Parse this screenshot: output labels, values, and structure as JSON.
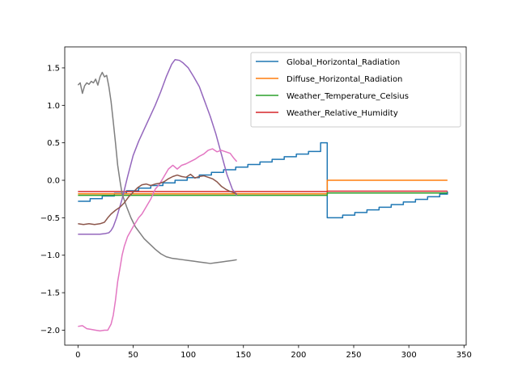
{
  "chart_data": {
    "type": "line",
    "xlim": [
      -12,
      352
    ],
    "ylim": [
      -2.2,
      1.78
    ],
    "x_ticks": [
      0,
      50,
      100,
      150,
      200,
      250,
      300,
      350
    ],
    "y_ticks": [
      -2.0,
      -1.5,
      -1.0,
      -0.5,
      0.0,
      0.5,
      1.0,
      1.5
    ],
    "y_tick_labels": [
      "−2.0",
      "−1.5",
      "−1.0",
      "−0.5",
      "0.0",
      "0.5",
      "1.0",
      "1.5"
    ],
    "grid": false,
    "legend_position": "top-right",
    "series": [
      {
        "name": "Global_Horizontal_Radiation",
        "color": "#1f77b4",
        "in_legend": true,
        "points": [
          [
            0,
            -0.28
          ],
          [
            11,
            -0.28
          ],
          [
            11,
            -0.245
          ],
          [
            22,
            -0.245
          ],
          [
            22,
            -0.21
          ],
          [
            33,
            -0.21
          ],
          [
            33,
            -0.175
          ],
          [
            44,
            -0.175
          ],
          [
            44,
            -0.14
          ],
          [
            55,
            -0.14
          ],
          [
            55,
            -0.105
          ],
          [
            66,
            -0.105
          ],
          [
            66,
            -0.07
          ],
          [
            77,
            -0.07
          ],
          [
            77,
            -0.035
          ],
          [
            88,
            -0.035
          ],
          [
            88,
            0.0
          ],
          [
            99,
            0.0
          ],
          [
            99,
            0.035
          ],
          [
            110,
            0.035
          ],
          [
            110,
            0.07
          ],
          [
            121,
            0.07
          ],
          [
            121,
            0.105
          ],
          [
            132,
            0.105
          ],
          [
            132,
            0.14
          ],
          [
            143,
            0.14
          ],
          [
            143,
            0.175
          ],
          [
            154,
            0.175
          ],
          [
            154,
            0.21
          ],
          [
            165,
            0.21
          ],
          [
            165,
            0.245
          ],
          [
            176,
            0.245
          ],
          [
            176,
            0.28
          ],
          [
            187,
            0.28
          ],
          [
            187,
            0.315
          ],
          [
            198,
            0.315
          ],
          [
            198,
            0.35
          ],
          [
            209,
            0.35
          ],
          [
            209,
            0.385
          ],
          [
            220,
            0.385
          ],
          [
            220,
            0.5
          ],
          [
            226,
            0.5
          ],
          [
            226,
            -0.5
          ],
          [
            240,
            -0.5
          ],
          [
            240,
            -0.465
          ],
          [
            251,
            -0.465
          ],
          [
            251,
            -0.43
          ],
          [
            262,
            -0.43
          ],
          [
            262,
            -0.395
          ],
          [
            273,
            -0.395
          ],
          [
            273,
            -0.36
          ],
          [
            284,
            -0.36
          ],
          [
            284,
            -0.325
          ],
          [
            295,
            -0.325
          ],
          [
            295,
            -0.29
          ],
          [
            306,
            -0.29
          ],
          [
            306,
            -0.255
          ],
          [
            317,
            -0.255
          ],
          [
            317,
            -0.22
          ],
          [
            328,
            -0.22
          ],
          [
            328,
            -0.185
          ],
          [
            335,
            -0.185
          ],
          [
            335,
            -0.15
          ]
        ]
      },
      {
        "name": "Diffuse_Horizontal_Radiation",
        "color": "#ff7f0e",
        "in_legend": true,
        "points": [
          [
            0,
            -0.18
          ],
          [
            226,
            -0.18
          ],
          [
            226,
            0.0
          ],
          [
            335,
            0.0
          ]
        ]
      },
      {
        "name": "Weather_Temperature_Celsius",
        "color": "#2ca02c",
        "in_legend": true,
        "points": [
          [
            0,
            -0.2
          ],
          [
            226,
            -0.2
          ],
          [
            226,
            -0.17
          ],
          [
            335,
            -0.17
          ]
        ]
      },
      {
        "name": "Weather_Relative_Humidity",
        "color": "#d62728",
        "in_legend": true,
        "points": [
          [
            0,
            -0.15
          ],
          [
            226,
            -0.15
          ],
          [
            226,
            -0.145
          ],
          [
            335,
            -0.145
          ]
        ]
      },
      {
        "color": "#9467bd",
        "in_legend": false,
        "points": [
          [
            0,
            -0.72
          ],
          [
            10,
            -0.72
          ],
          [
            20,
            -0.72
          ],
          [
            25,
            -0.71
          ],
          [
            28,
            -0.7
          ],
          [
            30,
            -0.67
          ],
          [
            32,
            -0.62
          ],
          [
            35,
            -0.5
          ],
          [
            38,
            -0.35
          ],
          [
            40,
            -0.25
          ],
          [
            45,
            0.05
          ],
          [
            50,
            0.33
          ],
          [
            55,
            0.52
          ],
          [
            60,
            0.68
          ],
          [
            65,
            0.84
          ],
          [
            70,
            1.0
          ],
          [
            75,
            1.18
          ],
          [
            80,
            1.38
          ],
          [
            85,
            1.55
          ],
          [
            88,
            1.61
          ],
          [
            92,
            1.6
          ],
          [
            95,
            1.57
          ],
          [
            100,
            1.5
          ],
          [
            105,
            1.38
          ],
          [
            110,
            1.25
          ],
          [
            115,
            1.05
          ],
          [
            120,
            0.85
          ],
          [
            125,
            0.62
          ],
          [
            130,
            0.35
          ],
          [
            135,
            0.08
          ],
          [
            140,
            -0.12
          ],
          [
            144,
            -0.2
          ]
        ]
      },
      {
        "color": "#7f7f7f",
        "in_legend": false,
        "points": [
          [
            0,
            1.27
          ],
          [
            2,
            1.3
          ],
          [
            4,
            1.16
          ],
          [
            6,
            1.26
          ],
          [
            8,
            1.3
          ],
          [
            10,
            1.28
          ],
          [
            12,
            1.32
          ],
          [
            14,
            1.3
          ],
          [
            16,
            1.35
          ],
          [
            18,
            1.27
          ],
          [
            20,
            1.38
          ],
          [
            22,
            1.44
          ],
          [
            24,
            1.38
          ],
          [
            26,
            1.4
          ],
          [
            28,
            1.25
          ],
          [
            30,
            1.05
          ],
          [
            32,
            0.78
          ],
          [
            34,
            0.5
          ],
          [
            36,
            0.2
          ],
          [
            38,
            0.0
          ],
          [
            40,
            -0.18
          ],
          [
            44,
            -0.35
          ],
          [
            48,
            -0.5
          ],
          [
            52,
            -0.62
          ],
          [
            56,
            -0.7
          ],
          [
            60,
            -0.78
          ],
          [
            65,
            -0.85
          ],
          [
            70,
            -0.92
          ],
          [
            75,
            -0.98
          ],
          [
            80,
            -1.02
          ],
          [
            85,
            -1.04
          ],
          [
            90,
            -1.05
          ],
          [
            95,
            -1.06
          ],
          [
            100,
            -1.07
          ],
          [
            105,
            -1.08
          ],
          [
            110,
            -1.09
          ],
          [
            115,
            -1.1
          ],
          [
            120,
            -1.11
          ],
          [
            125,
            -1.1
          ],
          [
            130,
            -1.09
          ],
          [
            135,
            -1.08
          ],
          [
            140,
            -1.07
          ],
          [
            144,
            -1.06
          ]
        ]
      },
      {
        "color": "#e377c2",
        "in_legend": false,
        "points": [
          [
            0,
            -1.95
          ],
          [
            4,
            -1.94
          ],
          [
            8,
            -1.98
          ],
          [
            12,
            -1.99
          ],
          [
            16,
            -2.0
          ],
          [
            20,
            -2.01
          ],
          [
            24,
            -2.0
          ],
          [
            27,
            -2.0
          ],
          [
            30,
            -1.92
          ],
          [
            32,
            -1.8
          ],
          [
            34,
            -1.6
          ],
          [
            36,
            -1.35
          ],
          [
            38,
            -1.18
          ],
          [
            40,
            -1.0
          ],
          [
            42,
            -0.88
          ],
          [
            45,
            -0.75
          ],
          [
            50,
            -0.62
          ],
          [
            55,
            -0.5
          ],
          [
            58,
            -0.45
          ],
          [
            62,
            -0.35
          ],
          [
            66,
            -0.25
          ],
          [
            70,
            -0.12
          ],
          [
            74,
            -0.05
          ],
          [
            78,
            0.05
          ],
          [
            82,
            0.15
          ],
          [
            86,
            0.2
          ],
          [
            90,
            0.15
          ],
          [
            94,
            0.2
          ],
          [
            98,
            0.22
          ],
          [
            102,
            0.25
          ],
          [
            106,
            0.28
          ],
          [
            110,
            0.32
          ],
          [
            114,
            0.35
          ],
          [
            118,
            0.4
          ],
          [
            122,
            0.42
          ],
          [
            126,
            0.38
          ],
          [
            130,
            0.4
          ],
          [
            134,
            0.38
          ],
          [
            138,
            0.36
          ],
          [
            141,
            0.3
          ],
          [
            144,
            0.25
          ]
        ]
      },
      {
        "color": "#8c564b",
        "in_legend": false,
        "points": [
          [
            0,
            -0.58
          ],
          [
            5,
            -0.59
          ],
          [
            10,
            -0.58
          ],
          [
            15,
            -0.59
          ],
          [
            20,
            -0.58
          ],
          [
            24,
            -0.56
          ],
          [
            27,
            -0.5
          ],
          [
            30,
            -0.45
          ],
          [
            34,
            -0.4
          ],
          [
            38,
            -0.36
          ],
          [
            42,
            -0.3
          ],
          [
            46,
            -0.22
          ],
          [
            50,
            -0.16
          ],
          [
            54,
            -0.1
          ],
          [
            58,
            -0.06
          ],
          [
            62,
            -0.05
          ],
          [
            66,
            -0.07
          ],
          [
            70,
            -0.05
          ],
          [
            74,
            -0.04
          ],
          [
            78,
            -0.02
          ],
          [
            82,
            0.02
          ],
          [
            86,
            0.05
          ],
          [
            90,
            0.07
          ],
          [
            94,
            0.05
          ],
          [
            98,
            0.04
          ],
          [
            102,
            0.08
          ],
          [
            106,
            0.03
          ],
          [
            110,
            0.05
          ],
          [
            114,
            0.06
          ],
          [
            118,
            0.04
          ],
          [
            122,
            0.02
          ],
          [
            126,
            -0.02
          ],
          [
            130,
            -0.08
          ],
          [
            134,
            -0.12
          ],
          [
            138,
            -0.15
          ],
          [
            142,
            -0.17
          ],
          [
            144,
            -0.18
          ]
        ]
      }
    ]
  }
}
